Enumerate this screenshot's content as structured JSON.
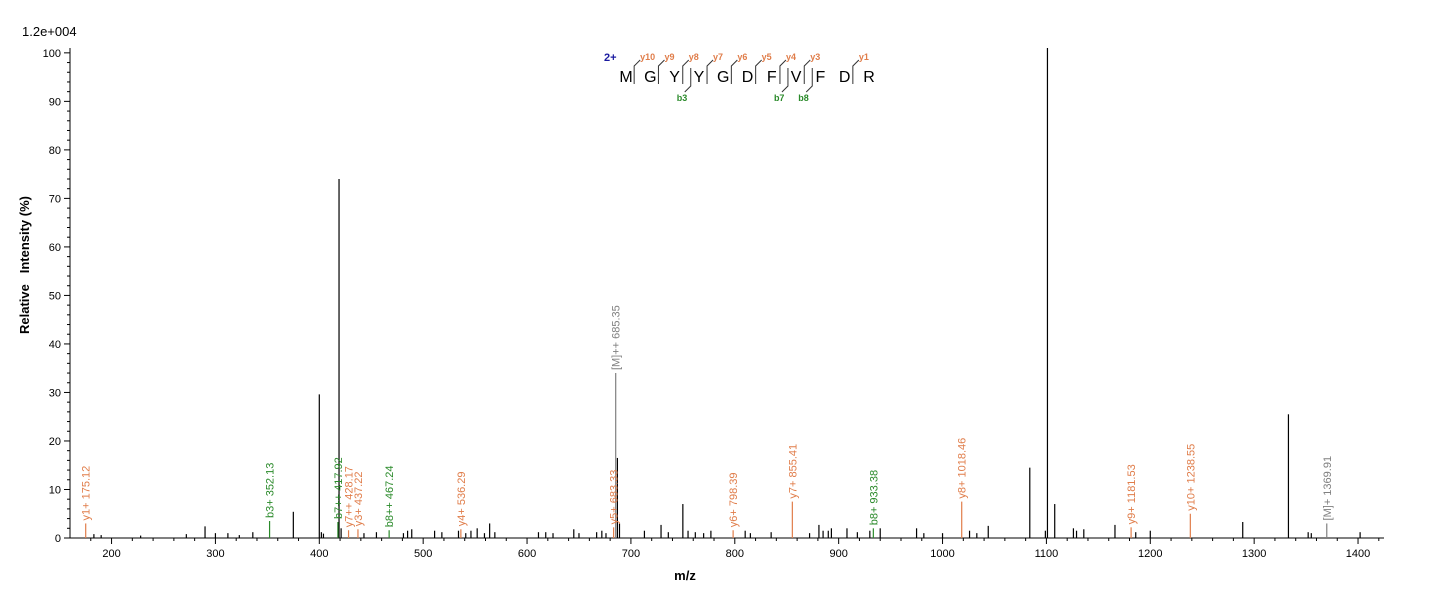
{
  "chart_data": {
    "type": "bar",
    "max_intensity_label": "1.2e+004",
    "xlabel": "m/z",
    "ylabel": "Relative   Intensity (%)",
    "xlim": [
      160,
      1425
    ],
    "ylim": [
      0,
      101
    ],
    "x_ticks": [
      200,
      300,
      400,
      500,
      600,
      700,
      800,
      900,
      1000,
      1100,
      1200,
      1300,
      1400
    ],
    "y_ticks": [
      0,
      10,
      20,
      30,
      40,
      50,
      60,
      70,
      80,
      90,
      100
    ],
    "colors": {
      "unlabeled": "#000000",
      "y_ion": "#e07d4a",
      "b_ion": "#2a8a2a",
      "precursor": "#808080",
      "charge": "#1a1aa0"
    },
    "peaks_unlabeled": [
      {
        "mz": 183,
        "i": 0.8
      },
      {
        "mz": 190,
        "i": 0.6
      },
      {
        "mz": 228,
        "i": 0.5
      },
      {
        "mz": 272,
        "i": 0.8
      },
      {
        "mz": 290,
        "i": 2.4
      },
      {
        "mz": 300,
        "i": 1.0
      },
      {
        "mz": 312,
        "i": 1.0
      },
      {
        "mz": 323,
        "i": 0.6
      },
      {
        "mz": 336,
        "i": 1.2
      },
      {
        "mz": 375,
        "i": 5.4
      },
      {
        "mz": 400,
        "i": 29.6
      },
      {
        "mz": 402,
        "i": 1.2
      },
      {
        "mz": 404,
        "i": 0.9
      },
      {
        "mz": 419,
        "i": 74.0
      },
      {
        "mz": 421,
        "i": 2.0
      },
      {
        "mz": 443,
        "i": 1.0
      },
      {
        "mz": 455,
        "i": 1.2
      },
      {
        "mz": 481,
        "i": 1.0
      },
      {
        "mz": 485,
        "i": 1.5
      },
      {
        "mz": 489,
        "i": 1.8
      },
      {
        "mz": 511,
        "i": 1.5
      },
      {
        "mz": 518,
        "i": 1.2
      },
      {
        "mz": 534,
        "i": 1.5
      },
      {
        "mz": 541,
        "i": 1.0
      },
      {
        "mz": 546,
        "i": 1.5
      },
      {
        "mz": 552,
        "i": 2.0
      },
      {
        "mz": 559,
        "i": 1.0
      },
      {
        "mz": 564,
        "i": 3.0
      },
      {
        "mz": 569,
        "i": 1.2
      },
      {
        "mz": 611,
        "i": 1.2
      },
      {
        "mz": 618,
        "i": 1.2
      },
      {
        "mz": 625,
        "i": 1.0
      },
      {
        "mz": 645,
        "i": 1.8
      },
      {
        "mz": 650,
        "i": 1.0
      },
      {
        "mz": 667,
        "i": 1.2
      },
      {
        "mz": 672,
        "i": 1.5
      },
      {
        "mz": 676,
        "i": 1.0
      },
      {
        "mz": 687,
        "i": 16.5
      },
      {
        "mz": 689,
        "i": 3.0
      },
      {
        "mz": 713,
        "i": 1.5
      },
      {
        "mz": 729,
        "i": 2.7
      },
      {
        "mz": 736,
        "i": 1.2
      },
      {
        "mz": 750,
        "i": 7.0
      },
      {
        "mz": 755,
        "i": 1.5
      },
      {
        "mz": 762,
        "i": 1.2
      },
      {
        "mz": 770,
        "i": 1.0
      },
      {
        "mz": 777,
        "i": 1.5
      },
      {
        "mz": 810,
        "i": 1.5
      },
      {
        "mz": 815,
        "i": 1.0
      },
      {
        "mz": 835,
        "i": 1.2
      },
      {
        "mz": 872,
        "i": 1.0
      },
      {
        "mz": 881,
        "i": 2.7
      },
      {
        "mz": 885,
        "i": 1.5
      },
      {
        "mz": 890,
        "i": 1.5
      },
      {
        "mz": 893,
        "i": 2.0
      },
      {
        "mz": 908,
        "i": 2.0
      },
      {
        "mz": 918,
        "i": 1.2
      },
      {
        "mz": 930,
        "i": 1.5
      },
      {
        "mz": 940,
        "i": 2.0
      },
      {
        "mz": 975,
        "i": 2.0
      },
      {
        "mz": 982,
        "i": 1.0
      },
      {
        "mz": 1000,
        "i": 1.0
      },
      {
        "mz": 1026,
        "i": 1.5
      },
      {
        "mz": 1033,
        "i": 1.0
      },
      {
        "mz": 1044,
        "i": 2.5
      },
      {
        "mz": 1084,
        "i": 14.5
      },
      {
        "mz": 1099,
        "i": 1.5
      },
      {
        "mz": 1101,
        "i": 101.0
      },
      {
        "mz": 1108,
        "i": 7.0
      },
      {
        "mz": 1126,
        "i": 2.0
      },
      {
        "mz": 1129,
        "i": 1.5
      },
      {
        "mz": 1136,
        "i": 1.8
      },
      {
        "mz": 1166,
        "i": 2.7
      },
      {
        "mz": 1186,
        "i": 1.2
      },
      {
        "mz": 1200,
        "i": 1.5
      },
      {
        "mz": 1289,
        "i": 3.3
      },
      {
        "mz": 1333,
        "i": 25.5
      },
      {
        "mz": 1352,
        "i": 1.2
      },
      {
        "mz": 1355,
        "i": 1.0
      },
      {
        "mz": 1402,
        "i": 1.2
      }
    ],
    "peaks_labeled": [
      {
        "mz": 175.12,
        "i": 3.0,
        "label": "y1+ 175.12",
        "kind": "y"
      },
      {
        "mz": 352.13,
        "i": 3.5,
        "label": "b3+ 352.13",
        "kind": "b"
      },
      {
        "mz": 417.92,
        "i": 3.3,
        "label": "b7++ 417.92",
        "kind": "b"
      },
      {
        "mz": 428.17,
        "i": 1.6,
        "label": "y7++ 428.17",
        "kind": "y"
      },
      {
        "mz": 437.22,
        "i": 1.8,
        "label": "y3+ 437.22",
        "kind": "y"
      },
      {
        "mz": 467.24,
        "i": 1.6,
        "label": "b8++ 467.24",
        "kind": "b"
      },
      {
        "mz": 536.29,
        "i": 1.8,
        "label": "y4+ 536.29",
        "kind": "y"
      },
      {
        "mz": 683.33,
        "i": 2.2,
        "label": "y5+ 683.33",
        "kind": "y"
      },
      {
        "mz": 685.35,
        "i": 34.0,
        "label": "[M]++ 685.35",
        "kind": "m"
      },
      {
        "mz": 798.39,
        "i": 1.6,
        "label": "y6+ 798.39",
        "kind": "y"
      },
      {
        "mz": 855.41,
        "i": 7.5,
        "label": "y7+ 855.41",
        "kind": "y"
      },
      {
        "mz": 933.38,
        "i": 2.0,
        "label": "b8+ 933.38",
        "kind": "b"
      },
      {
        "mz": 1018.46,
        "i": 7.5,
        "label": "y8+ 1018.46",
        "kind": "y"
      },
      {
        "mz": 1181.53,
        "i": 2.2,
        "label": "y9+ 1181.53",
        "kind": "y"
      },
      {
        "mz": 1238.55,
        "i": 5.0,
        "label": "y10+ 1238.55",
        "kind": "y"
      },
      {
        "mz": 1369.91,
        "i": 3.0,
        "label": "[M]+ 1369.91",
        "kind": "m"
      }
    ],
    "sequence": {
      "charge": "2+",
      "letters": [
        "M",
        "G",
        "Y",
        "Y",
        "G",
        "D",
        "F",
        "V",
        "F",
        "D",
        "R"
      ],
      "y_ions": [
        {
          "after": 1,
          "label": "y10"
        },
        {
          "after": 2,
          "label": "y9"
        },
        {
          "after": 3,
          "label": "y8"
        },
        {
          "after": 4,
          "label": "y7"
        },
        {
          "after": 5,
          "label": "y6"
        },
        {
          "after": 6,
          "label": "y5"
        },
        {
          "after": 7,
          "label": "y4"
        },
        {
          "after": 8,
          "label": "y3"
        },
        {
          "after": 10,
          "label": "y1"
        }
      ],
      "b_ions": [
        {
          "after": 3,
          "label": "b3"
        },
        {
          "after": 7,
          "label": "b7"
        },
        {
          "after": 8,
          "label": "b8"
        }
      ]
    }
  }
}
